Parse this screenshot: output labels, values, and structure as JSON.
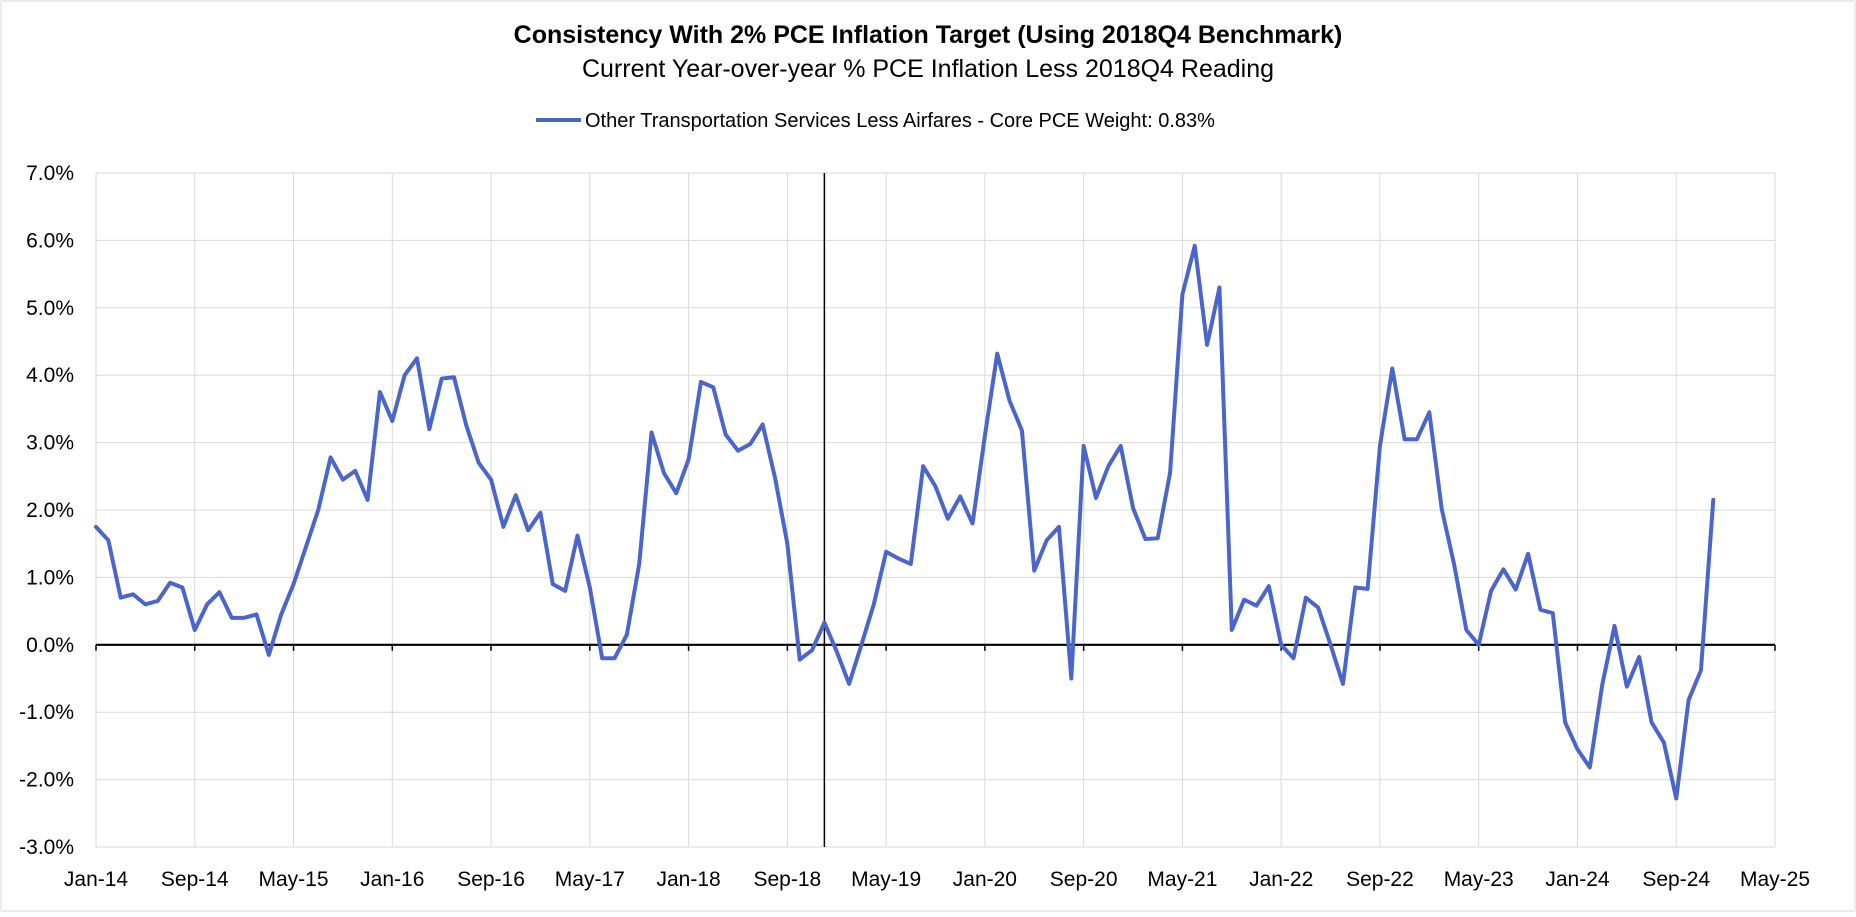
{
  "chart_data": {
    "type": "line",
    "title": "Consistency With 2% PCE Inflation Target (Using 2018Q4 Benchmark)",
    "subtitle": "Current Year-over-year % PCE Inflation Less 2018Q4 Reading",
    "xlabel": "",
    "ylabel": "",
    "ylim": [
      -3.0,
      7.0
    ],
    "y_ticks": [
      "-3.0%",
      "-2.0%",
      "-1.0%",
      "0.0%",
      "1.0%",
      "2.0%",
      "3.0%",
      "4.0%",
      "5.0%",
      "6.0%",
      "7.0%"
    ],
    "x_ticks": [
      "Jan-14",
      "Sep-14",
      "May-15",
      "Jan-16",
      "Sep-16",
      "May-17",
      "Jan-18",
      "Sep-18",
      "May-19",
      "Jan-20",
      "Sep-20",
      "May-21",
      "Jan-22",
      "Sep-22",
      "May-23",
      "Jan-24",
      "Sep-24",
      "May-25"
    ],
    "x_start": "Jan-14",
    "x_end": "May-25",
    "grid": true,
    "legend_position": "top-center",
    "vertical_marker": "Dec-18",
    "series": [
      {
        "name": "Other Transportation Services Less Airfares - Core PCE Weight: 0.83%",
        "color": "#4a66cc",
        "start": "Jan-14",
        "values": [
          1.75,
          1.55,
          0.7,
          0.75,
          0.6,
          0.65,
          0.92,
          0.85,
          0.22,
          0.6,
          0.78,
          0.4,
          0.4,
          0.45,
          -0.15,
          0.45,
          0.9,
          1.45,
          2.0,
          2.78,
          2.45,
          2.58,
          2.15,
          3.75,
          3.32,
          4.0,
          4.25,
          3.2,
          3.95,
          3.97,
          3.25,
          2.7,
          2.45,
          1.75,
          2.22,
          1.7,
          1.96,
          0.9,
          0.8,
          1.62,
          0.85,
          -0.2,
          -0.2,
          0.15,
          1.2,
          3.15,
          2.55,
          2.25,
          2.75,
          3.9,
          3.82,
          3.12,
          2.88,
          2.98,
          3.27,
          2.48,
          1.5,
          -0.22,
          -0.08,
          0.33,
          -0.1,
          -0.58,
          0.0,
          0.6,
          1.38,
          1.28,
          1.2,
          2.65,
          2.35,
          1.87,
          2.2,
          1.8,
          3.1,
          4.32,
          3.62,
          3.18,
          1.1,
          1.55,
          1.75,
          -0.5,
          2.95,
          2.18,
          2.65,
          2.95,
          2.03,
          1.57,
          1.58,
          2.55,
          5.2,
          5.92,
          4.45,
          5.3,
          0.22,
          0.67,
          0.58,
          0.87,
          0.0,
          -0.2,
          0.7,
          0.55,
          0.0,
          -0.58,
          0.85,
          0.83,
          2.95,
          4.1,
          3.05,
          3.05,
          3.45,
          2.02,
          1.2,
          0.22,
          0.0,
          0.8,
          1.12,
          0.82,
          1.35,
          0.52,
          0.47,
          -1.15,
          -1.55,
          -1.82,
          -0.6,
          0.28,
          -0.62,
          -0.18,
          -1.15,
          -1.45,
          -2.28,
          -0.82,
          -0.38,
          2.15
        ]
      }
    ]
  }
}
